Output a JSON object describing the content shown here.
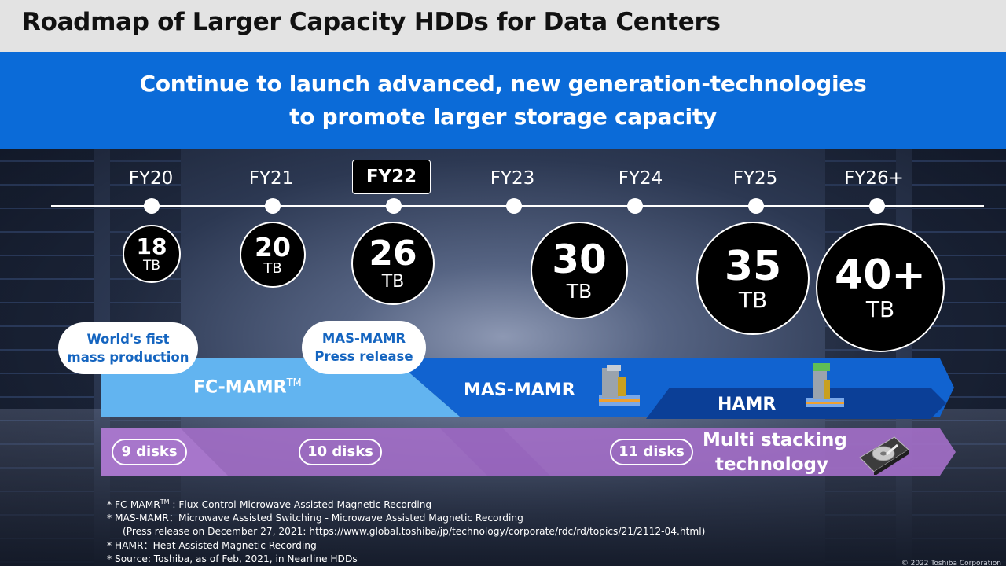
{
  "title": "Roadmap of Larger Capacity HDDs for Data Centers",
  "banner": {
    "line1": "Continue to launch advanced, new generation-technologies",
    "line2": "to promote larger storage capacity"
  },
  "timeline": [
    {
      "fy": "FY20",
      "capacity": "18",
      "unit": "TB",
      "highlight": false
    },
    {
      "fy": "FY21",
      "capacity": "20",
      "unit": "TB",
      "highlight": false
    },
    {
      "fy": "FY22",
      "capacity": "26",
      "unit": "TB",
      "highlight": true
    },
    {
      "fy": "FY23",
      "capacity": "30",
      "unit": "TB",
      "highlight": false
    },
    {
      "fy": "FY24",
      "capacity": "",
      "unit": "",
      "highlight": false
    },
    {
      "fy": "FY25",
      "capacity": "35",
      "unit": "TB",
      "highlight": false
    },
    {
      "fy": "FY26+",
      "capacity": "40+",
      "unit": "TB",
      "highlight": false
    }
  ],
  "callouts": {
    "worlds_first_line1": "World's fist",
    "worlds_first_line2": "mass production",
    "mas_mamr_line1": "MAS-MAMR",
    "mas_mamr_line2": "Press release"
  },
  "technologies": {
    "fc_mamr": "FC-MAMR",
    "fc_mamr_tm": "TM",
    "mas_mamr": "MAS-MAMR",
    "hamr": "HAMR"
  },
  "disks": {
    "d9": "9 disks",
    "d10": "10 disks",
    "d11": "11 disks",
    "multi_line1": "Multi stacking",
    "multi_line2": "technology"
  },
  "notes": {
    "n1_prefix": "* FC-MAMR",
    "n1_tm": "TM",
    "n1_rest": " : Flux Control-Microwave Assisted Magnetic Recording",
    "n2": "* MAS-MAMR：Microwave Assisted Switching - Microwave Assisted Magnetic Recording",
    "n3": "(Press release on December 27, 2021: https://www.global.toshiba/jp/technology/corporate/rdc/rd/topics/21/2112-04.html)",
    "n4": "* HAMR：Heat Assisted Magnetic Recording",
    "n5": "* Source: Toshiba, as of Feb, 2021, in Nearline HDDs"
  },
  "copyright": "© 2022 Toshiba Corporation",
  "colors": {
    "banner": "#0b6bd8",
    "fc_mamr_band": "#62b4f0",
    "mas_mamr_band": "#1163d0",
    "hamr_band": "#0b3f97",
    "disk_band": "#a46fc9",
    "callout_text": "#1565c0"
  }
}
